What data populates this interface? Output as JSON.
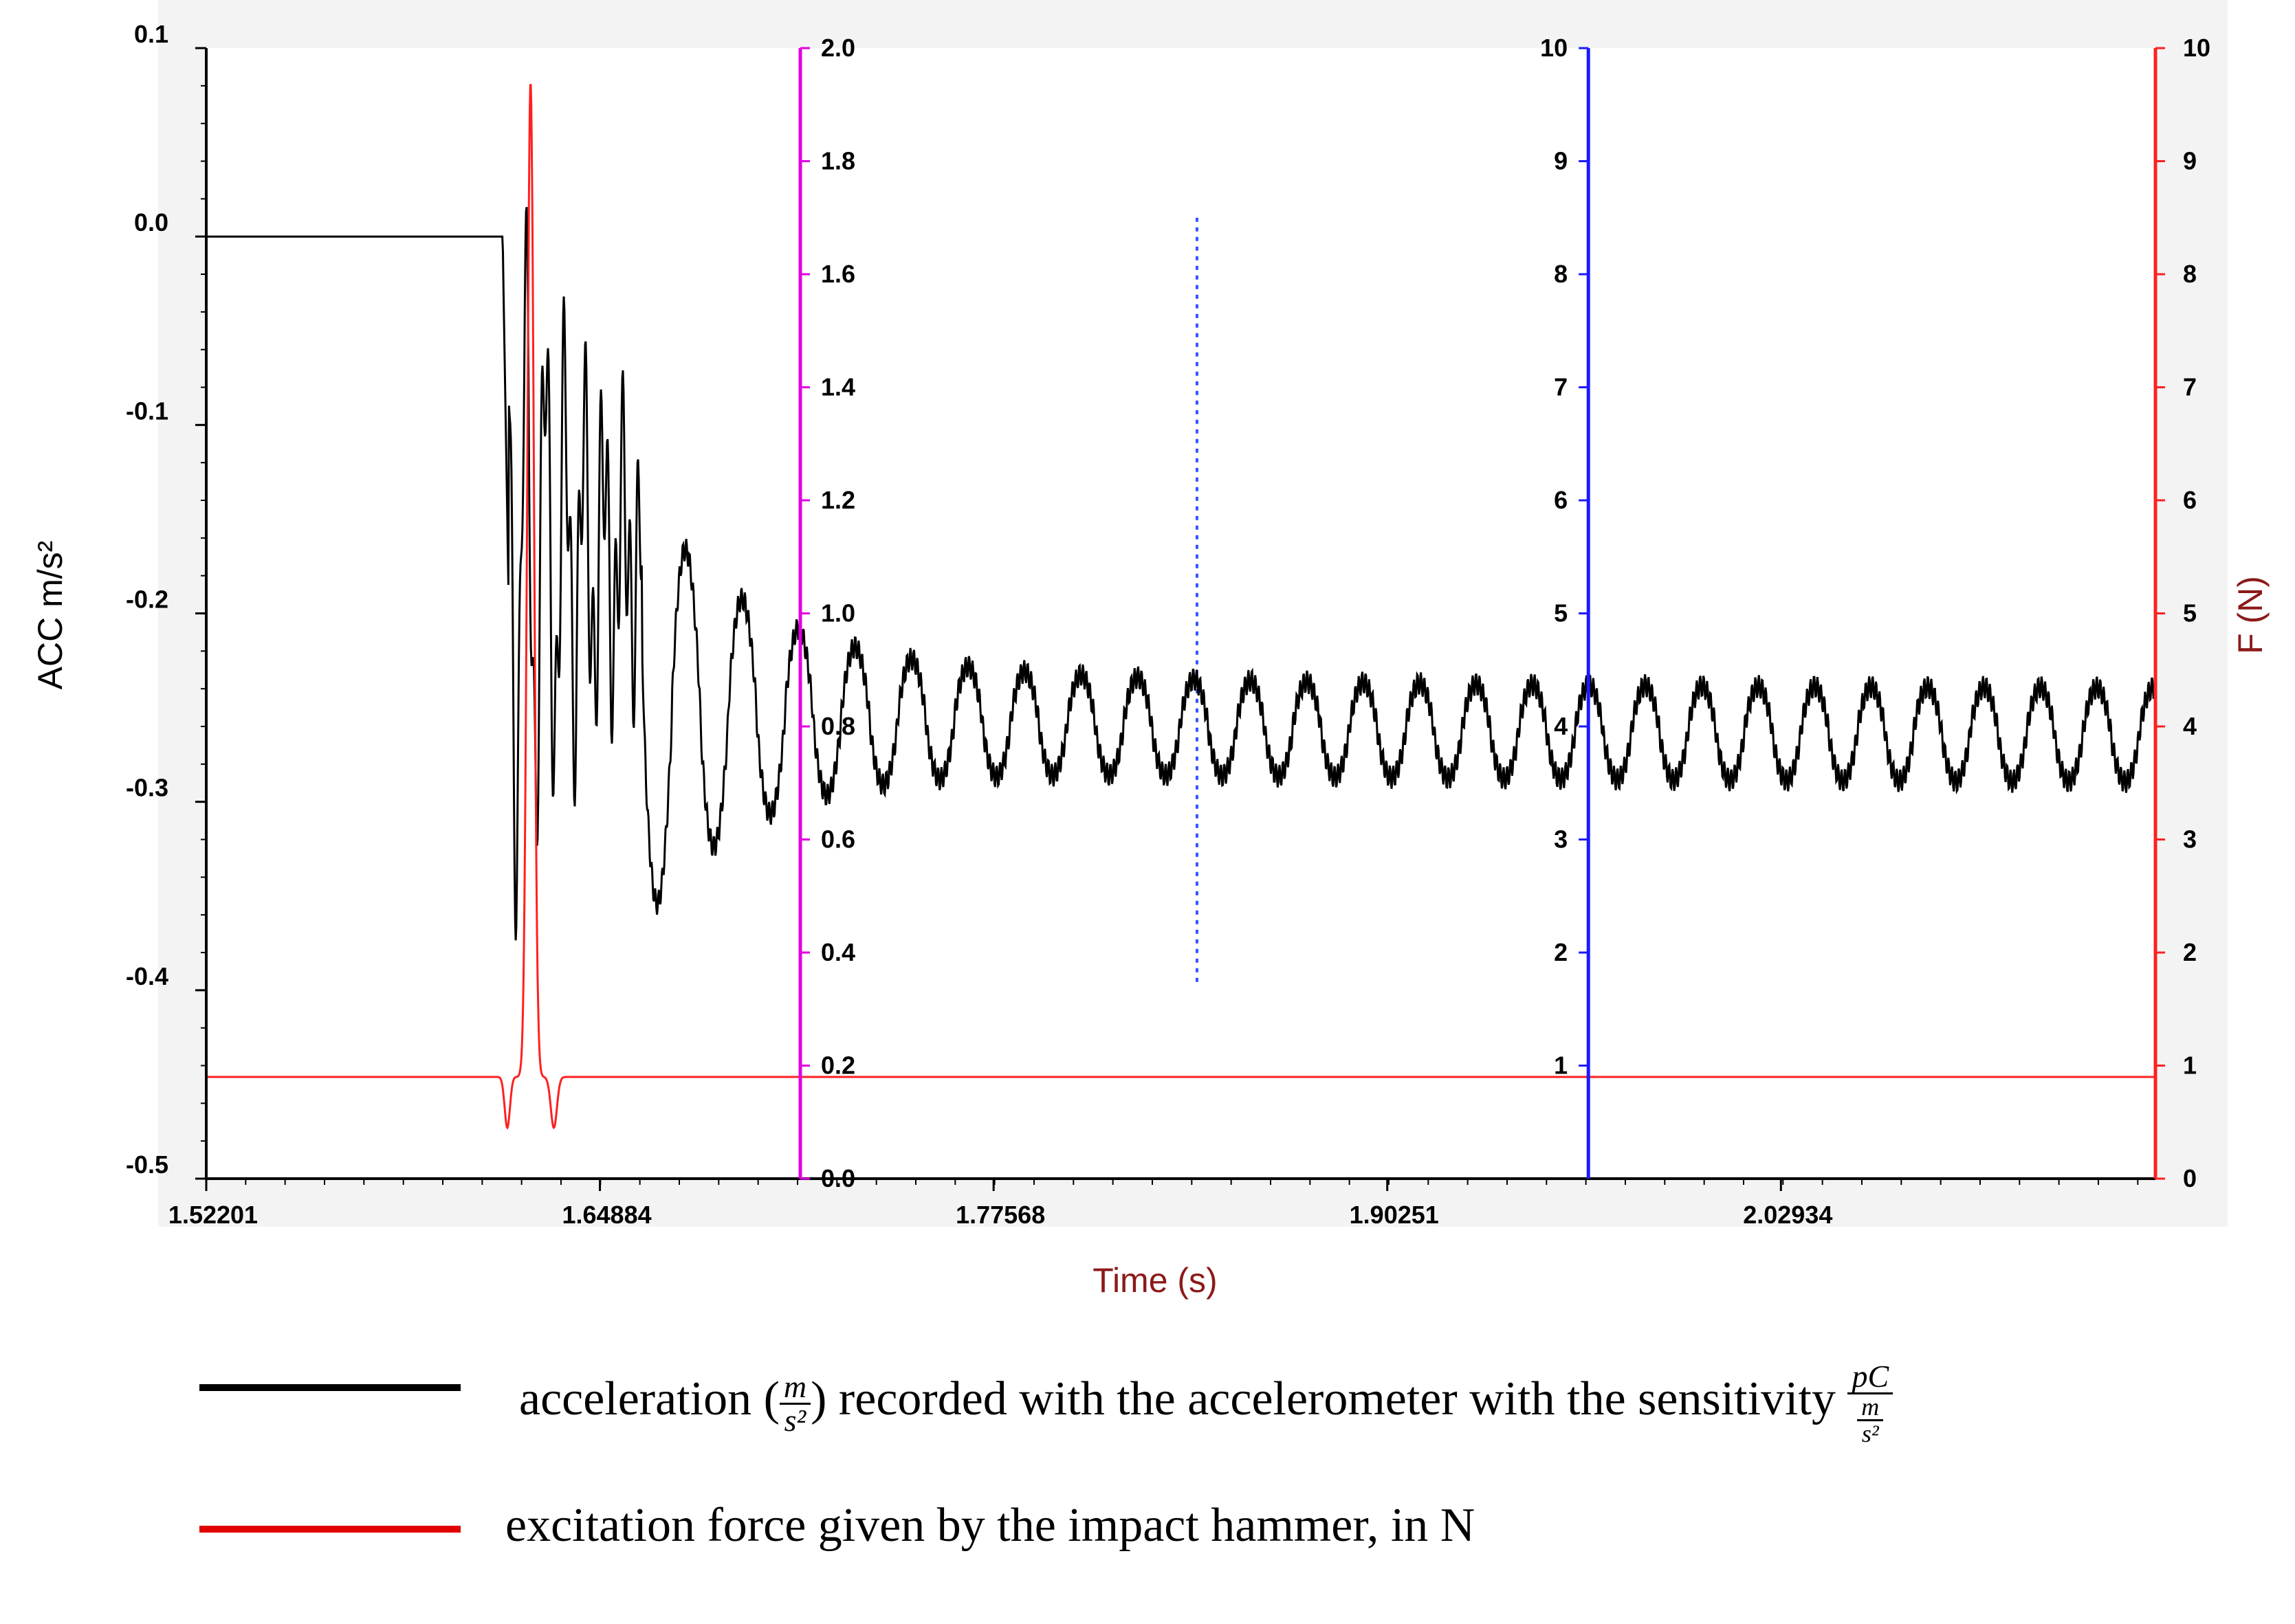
{
  "chart_data": {
    "type": "line",
    "xlabel": "Time  (s)",
    "x_ticks": [
      "1.52201",
      "1.64884",
      "1.77568",
      "1.90251",
      "2.02934"
    ],
    "x_range": [
      1.52201,
      2.15
    ],
    "axes": {
      "acc": {
        "label": "ACC m/s²",
        "ticks": [
          "0.1",
          "0.0",
          "-0.1",
          "-0.2",
          "-0.3",
          "-0.4",
          "-0.5"
        ],
        "range": [
          -0.5,
          0.1
        ]
      },
      "magenta": {
        "ticks": [
          "2.0",
          "1.8",
          "1.6",
          "1.4",
          "1.2",
          "1.0",
          "0.8",
          "0.6",
          "0.4",
          "0.2",
          "0.0"
        ],
        "range": [
          0.0,
          2.0
        ],
        "color": "#e000e0",
        "x_pos": 1.7134
      },
      "blue": {
        "ticks": [
          "10",
          "9",
          "8",
          "7",
          "6",
          "5",
          "4",
          "3",
          "2",
          "1"
        ],
        "range": [
          0,
          10
        ],
        "color": "#1a1aff",
        "x_pos": 1.9673
      },
      "force": {
        "label": "F (N)",
        "ticks": [
          "10",
          "9",
          "8",
          "7",
          "6",
          "5",
          "4",
          "3",
          "2",
          "1",
          "0"
        ],
        "range": [
          0,
          10
        ],
        "color": "#ff2020",
        "label_color": "#8b1a1a"
      }
    },
    "cursor": {
      "x": 1.8412,
      "y_range": [
        1.7,
        8.5
      ],
      "color": "#3355ff"
    },
    "series": [
      {
        "name": "acceleration",
        "color": "#000000",
        "values_desc": "flat at 0.0 until t≈1.617 s, sharp impact response reaching ≈ -0.39 / +0.01, then decaying oscillation settling around -0.26 with amplitude ≈0.05 until 2.15 s"
      },
      {
        "name": "force",
        "color": "#ff2020",
        "values_desc": "flat at 0.9 N, impact pulse at t≈1.626 s reaching ≈9.7 N with undershoot to ≈0.5 N, then flat at 0.9 N"
      }
    ]
  },
  "legend": {
    "acc_text_a": "acceleration (",
    "acc_frac_num": "m",
    "acc_frac_den": "s²",
    "acc_text_b": ") recorded with the accelerometer with the sensitivity ",
    "acc_sens_num": "pC",
    "acc_sens_den_num": "m",
    "acc_sens_den_den": "s²",
    "force_text": "excitation force given by the impact hammer, in N",
    "acc_color": "#000000",
    "force_color": "#e00000"
  }
}
